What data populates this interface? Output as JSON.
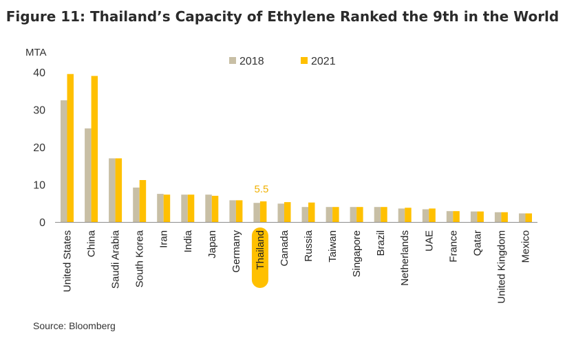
{
  "title": "Figure 11: Thailand’s  Capacity of Ethylene Ranked the 9th in the World",
  "source": "Source: Bloomberg",
  "chart_data": {
    "type": "bar",
    "ylabel": "MTA",
    "ylim": [
      0,
      40
    ],
    "yticks": [
      0,
      10,
      20,
      30,
      40
    ],
    "grid": false,
    "legend_position": "top",
    "highlight_category": "Thailand",
    "highlight_label": "5.5",
    "categories": [
      "United States",
      "China",
      "Saudi Arabia",
      "South Korea",
      "Iran",
      "India",
      "Japan",
      "Germany",
      "Thailand",
      "Canada",
      "Russia",
      "Taiwan",
      "Singapore",
      "Brazil",
      "Netherlands",
      "UAE",
      "France",
      "Qatar",
      "United Kingdom",
      "Mexico"
    ],
    "series": [
      {
        "name": "2018",
        "color": "#c8bfa5",
        "values": [
          32.5,
          25.0,
          17.0,
          9.2,
          7.5,
          7.3,
          7.3,
          5.8,
          5.1,
          4.9,
          4.0,
          4.0,
          4.0,
          4.0,
          3.6,
          3.4,
          2.9,
          2.8,
          2.6,
          2.3
        ]
      },
      {
        "name": "2021",
        "color": "#ffc000",
        "values": [
          39.5,
          39.0,
          17.0,
          11.2,
          7.3,
          7.3,
          7.0,
          5.8,
          5.5,
          5.3,
          5.2,
          4.0,
          4.0,
          4.0,
          3.8,
          3.6,
          2.9,
          2.8,
          2.6,
          2.3
        ]
      }
    ]
  }
}
